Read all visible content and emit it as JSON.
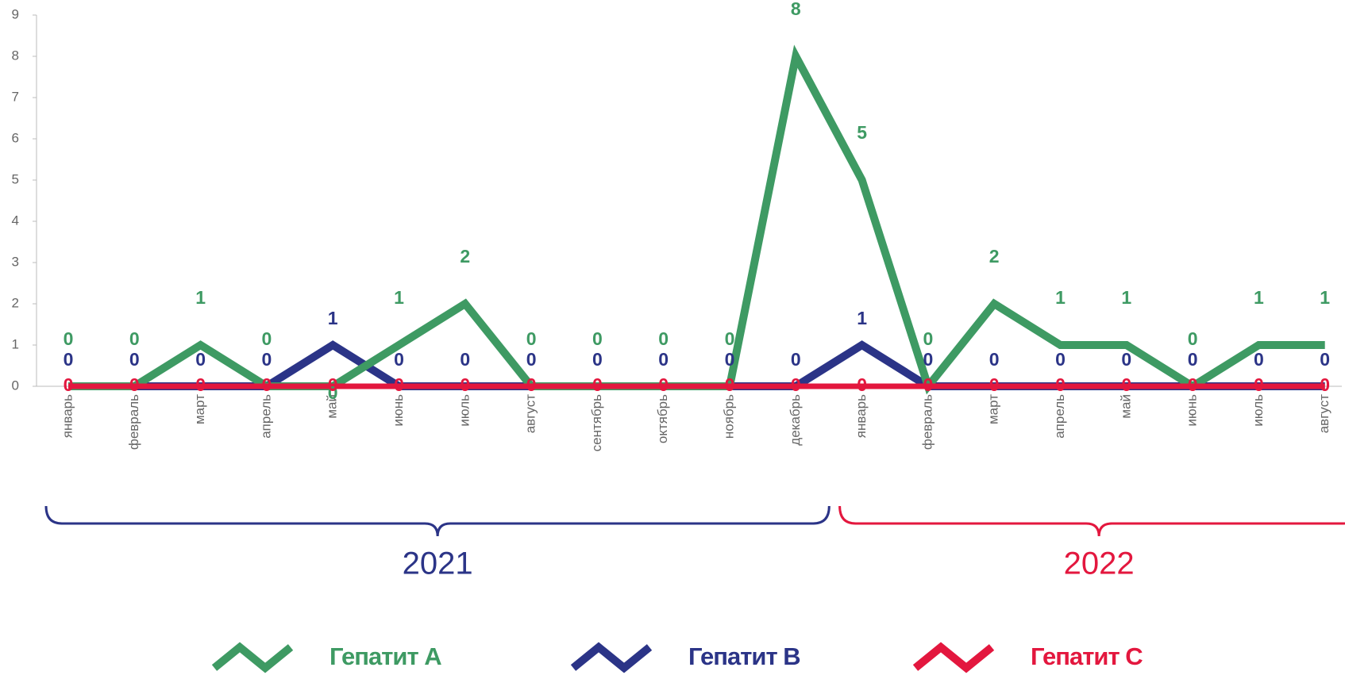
{
  "chart_data": {
    "type": "line",
    "categories": [
      "январь",
      "февраль",
      "март",
      "апрель",
      "май",
      "июнь",
      "июль",
      "август",
      "сентябрь",
      "октябрь",
      "ноябрь",
      "декабрь",
      "январь",
      "февраль",
      "март",
      "апрель",
      "май",
      "июнь",
      "июль",
      "август"
    ],
    "series": [
      {
        "name": "Гепатит А",
        "color": "#3e9a63",
        "values": [
          0,
          0,
          1,
          0,
          0,
          1,
          2,
          0,
          0,
          0,
          0,
          8,
          5,
          0,
          2,
          1,
          1,
          0,
          1,
          1
        ]
      },
      {
        "name": "Гепатит В",
        "color": "#2b3487",
        "values": [
          0,
          0,
          0,
          0,
          1,
          0,
          0,
          0,
          0,
          0,
          0,
          0,
          1,
          0,
          0,
          0,
          0,
          0,
          0,
          0
        ]
      },
      {
        "name": "Гепатит С",
        "color": "#e3173e",
        "values": [
          0,
          0,
          0,
          0,
          0,
          0,
          0,
          0,
          0,
          0,
          0,
          0,
          0,
          0,
          0,
          0,
          0,
          0,
          0,
          0
        ]
      }
    ],
    "groups": [
      {
        "label": "2021",
        "color": "#2b3487",
        "count": 12
      },
      {
        "label": "2022",
        "color": "#e3173e",
        "count": 8
      }
    ],
    "ylim": [
      0,
      9
    ],
    "yticks": [
      0,
      1,
      2,
      3,
      4,
      5,
      6,
      7,
      8,
      9
    ],
    "grid": false,
    "legend": "bottom"
  }
}
